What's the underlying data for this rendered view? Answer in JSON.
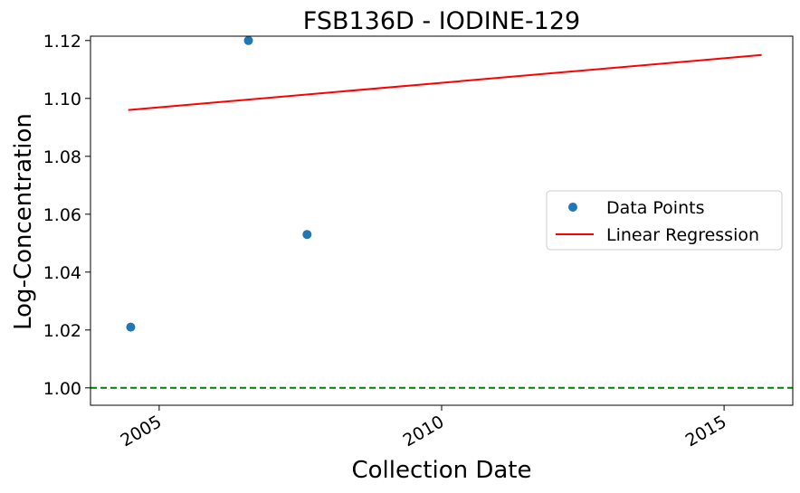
{
  "chart_data": {
    "type": "scatter",
    "title": "FSB136D - IODINE-129",
    "xlabel": "Collection Date",
    "ylabel": "Log-Concentration",
    "xlim": [
      "2003-10-15",
      "2016-03-20"
    ],
    "ylim": [
      0.994,
      1.1215
    ],
    "x_ticks": [
      "2005",
      "2010",
      "2015"
    ],
    "y_ticks": [
      "1.00",
      "1.02",
      "1.04",
      "1.06",
      "1.08",
      "1.10",
      "1.12"
    ],
    "grid": false,
    "legend_position": "center-right",
    "series": [
      {
        "name": "Data Points",
        "kind": "scatter",
        "color": "#1f77b4",
        "points": [
          {
            "x": "2004-07-01",
            "y": 1.021
          },
          {
            "x": "2006-08-01",
            "y": 1.12
          },
          {
            "x": "2007-08-15",
            "y": 1.053
          }
        ]
      },
      {
        "name": "Linear Regression",
        "kind": "line",
        "color": "#ff0000",
        "points": [
          {
            "x": "2004-06-15",
            "y": 1.096
          },
          {
            "x": "2015-09-01",
            "y": 1.115
          }
        ]
      }
    ],
    "reference_line": {
      "y": 1.0,
      "color": "#008000",
      "style": "dashed"
    }
  }
}
